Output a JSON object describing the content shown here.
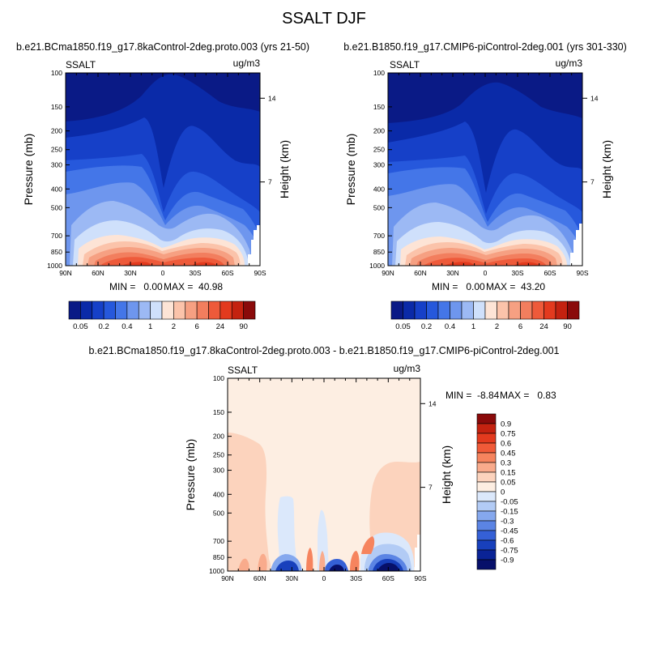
{
  "main_title": "SSALT DJF",
  "panels": [
    {
      "case": "b.e21.BCma1850.f19_g17.8kaControl-2deg.proto.003 (yrs 21-50)",
      "var": "SSALT",
      "units": "ug/m3",
      "ylabel": "Pressure (mb)",
      "y2label": "Height (km)",
      "min_text": "MIN =   0.00",
      "max_text": "MAX =  40.98"
    },
    {
      "case": "b.e21.B1850.f19_g17.CMIP6-piControl-2deg.001 (yrs 301-330)",
      "var": "SSALT",
      "units": "ug/m3",
      "ylabel": "Pressure (mb)",
      "y2label": "Height (km)",
      "min_text": "MIN =   0.00",
      "max_text": "MAX =  43.20"
    },
    {
      "case": "b.e21.BCma1850.f19_g17.8kaControl-2deg.proto.003 - b.e21.B1850.f19_g17.CMIP6-piControl-2deg.001",
      "var": "SSALT",
      "units": "ug/m3",
      "ylabel": "Pressure (mb)",
      "y2label": "Height (km)",
      "min_text": "MIN =  -8.84",
      "max_text": "MAX =   0.83"
    }
  ],
  "chart_data": [
    {
      "type": "heatmap",
      "title": "b.e21.BCma1850.f19_g17.8kaControl-2deg.proto.003 (yrs 21-50)",
      "x_ticks": [
        "90N",
        "60N",
        "30N",
        "0",
        "30S",
        "60S",
        "90S"
      ],
      "y_ticks": [
        100,
        150,
        200,
        250,
        300,
        400,
        500,
        700,
        850,
        1000
      ],
      "y2_ticks": [
        14,
        7
      ],
      "ylabel": "Pressure (mb)",
      "y2label": "Height (km)",
      "units": "ug/m3",
      "min": 0.0,
      "max": 40.98,
      "colorbar_labels": [
        "0.05",
        "0.2",
        "0.4",
        "1",
        "2",
        "6",
        "24",
        "90"
      ]
    },
    {
      "type": "heatmap",
      "title": "b.e21.B1850.f19_g17.CMIP6-piControl-2deg.001 (yrs 301-330)",
      "x_ticks": [
        "90N",
        "60N",
        "30N",
        "0",
        "30S",
        "60S",
        "90S"
      ],
      "y_ticks": [
        100,
        150,
        200,
        250,
        300,
        400,
        500,
        700,
        850,
        1000
      ],
      "y2_ticks": [
        14,
        7
      ],
      "ylabel": "Pressure (mb)",
      "y2label": "Height (km)",
      "units": "ug/m3",
      "min": 0.0,
      "max": 43.2,
      "colorbar_labels": [
        "0.05",
        "0.2",
        "0.4",
        "1",
        "2",
        "6",
        "24",
        "90"
      ]
    },
    {
      "type": "heatmap",
      "title": "b.e21.BCma1850.f19_g17.8kaControl-2deg.proto.003 - b.e21.B1850.f19_g17.CMIP6-piControl-2deg.001",
      "x_ticks": [
        "90N",
        "60N",
        "30N",
        "0",
        "30S",
        "60S",
        "90S"
      ],
      "y_ticks": [
        100,
        150,
        200,
        250,
        300,
        400,
        500,
        700,
        850,
        1000
      ],
      "y2_ticks": [
        14,
        7
      ],
      "ylabel": "Pressure (mb)",
      "y2label": "Height (km)",
      "units": "ug/m3",
      "min": -8.84,
      "max": 0.83,
      "colorbar_labels": [
        "0.9",
        "0.75",
        "0.6",
        "0.45",
        "0.3",
        "0.15",
        "0.05",
        "0",
        "-0.05",
        "-0.15",
        "-0.3",
        "-0.45",
        "-0.6",
        "-0.75",
        "-0.9"
      ]
    }
  ],
  "colors": {
    "abs_scale": [
      "#0a1a86",
      "#0a2aa8",
      "#1640c8",
      "#2658dc",
      "#4476e8",
      "#6e96ee",
      "#9cb9f4",
      "#cfe0fb",
      "#fde4d6",
      "#fbc3aa",
      "#f6a082",
      "#f27e5e",
      "#ee5a3a",
      "#e33a1e",
      "#c42210",
      "#8a0a0a"
    ],
    "diff_scale": [
      "#8a0a0a",
      "#c42210",
      "#e33a1e",
      "#f05a38",
      "#f6845e",
      "#f9ab8c",
      "#fcd3bd",
      "#fdeee2",
      "#dbe8fb",
      "#b2cbf5",
      "#85a8ee",
      "#5b84e4",
      "#3560d6",
      "#1840bc",
      "#0a2396",
      "#07106a"
    ]
  }
}
